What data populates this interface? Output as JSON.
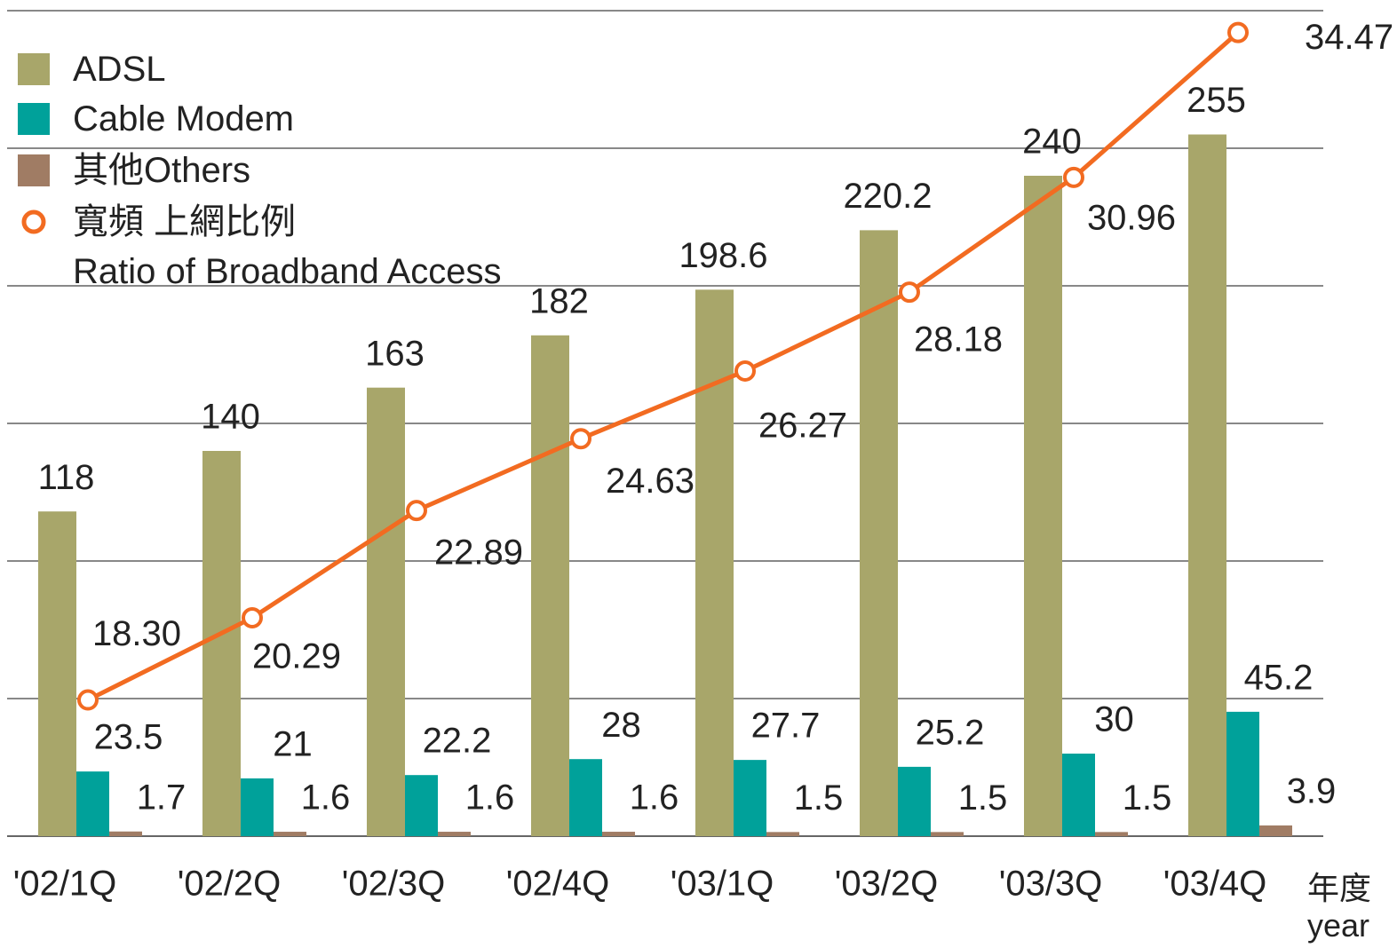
{
  "chart_data": {
    "type": "bar",
    "categories": [
      "'02/1Q",
      "'02/2Q",
      "'02/3Q",
      "'02/4Q",
      "'03/1Q",
      "'03/2Q",
      "'03/3Q",
      "'03/4Q"
    ],
    "x_label": "年度\nyear",
    "series": [
      {
        "name": "ADSL",
        "color": "#a8a66a",
        "values": [
          118,
          140,
          163,
          182,
          198.6,
          220.2,
          240,
          255
        ]
      },
      {
        "name": "Cable Modem",
        "color": "#00a19a",
        "values": [
          23.5,
          21,
          22.2,
          28,
          27.7,
          25.2,
          30,
          45.2
        ]
      },
      {
        "name": "其他Others",
        "color": "#a07c64",
        "values": [
          1.7,
          1.6,
          1.6,
          1.6,
          1.5,
          1.5,
          1.5,
          3.9
        ]
      },
      {
        "name": "寬頻 上網比例\nRatio of Broadband Access",
        "color": "#f26b21",
        "type": "line",
        "axis": "y2",
        "values": [
          18.3,
          20.29,
          22.89,
          24.63,
          26.27,
          28.18,
          30.96,
          34.47
        ],
        "value_labels": [
          "18.30",
          "20.29",
          "22.89",
          "24.63",
          "26.27",
          "28.18",
          "30.96",
          "34.47"
        ]
      }
    ],
    "ylim": [
      0,
      300
    ],
    "yticks": [
      0,
      50,
      100,
      150,
      200,
      250,
      300
    ],
    "grid": true,
    "y2lim": [
      15,
      35
    ],
    "legend": "upper left"
  }
}
